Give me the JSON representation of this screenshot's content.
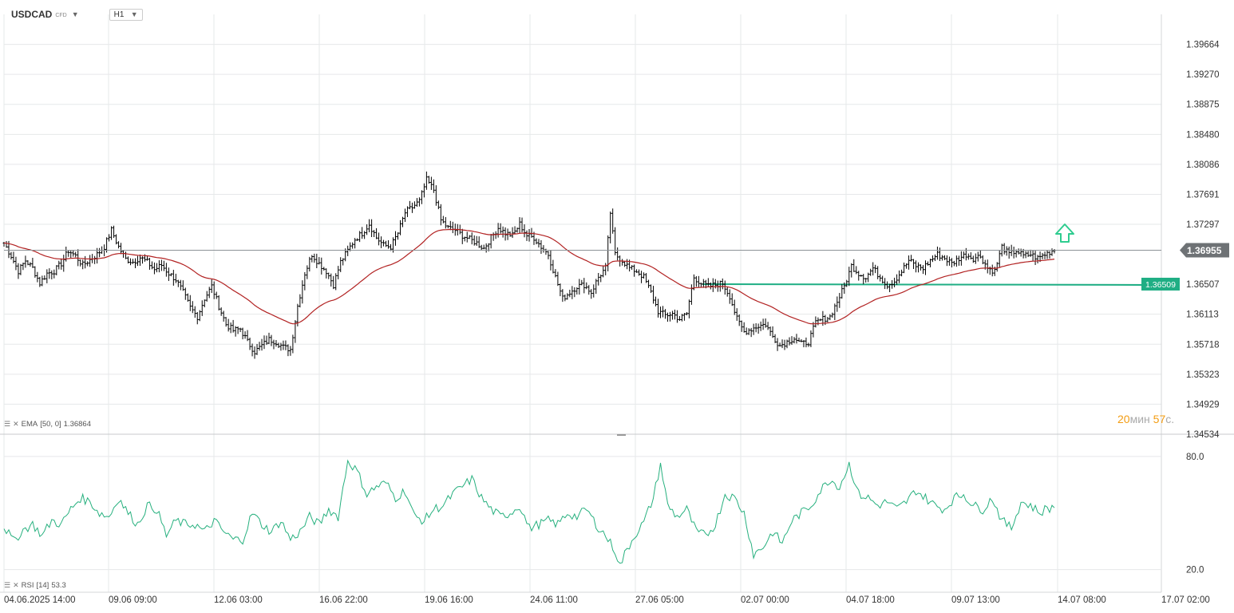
{
  "header": {
    "symbol": "USDCAD",
    "instrument_type": "CFD",
    "timeframe": "H1"
  },
  "indicators": {
    "ema_label": "EMA",
    "ema_params": "[50, 0]",
    "ema_value": "1.36864",
    "rsi_label": "RSI",
    "rsi_params": "[14]",
    "rsi_value": "53.3"
  },
  "timer": {
    "minutes": "20",
    "minutes_unit": "мин",
    "seconds": "57",
    "seconds_unit": "с."
  },
  "colors": {
    "candles": "#000000",
    "ema": "#b22222",
    "rsi": "#26b07e",
    "support_line": "#1fae84",
    "support_label_bg": "#1fae84",
    "price_tag_bg": "#6e7275",
    "arrow": "#2ecc8f",
    "grid": "#e6e8ea"
  },
  "chart_data": [
    {
      "type": "ohlc",
      "title": "USDCAD H1",
      "x_tick_labels": [
        "04.06.2025 14:00",
        "09.06 09:00",
        "12.06 03:00",
        "16.06 22:00",
        "19.06 16:00",
        "24.06 11:00",
        "27.06 05:00",
        "02.07 00:00",
        "04.07 18:00",
        "09.07 13:00",
        "14.07 08:00",
        "17.07 02:00"
      ],
      "y_tick_labels": [
        "1.39664",
        "1.39270",
        "1.38875",
        "1.38480",
        "1.38086",
        "1.37691",
        "1.37297",
        "1.36955",
        "1.36507",
        "1.36113",
        "1.35718",
        "1.35323",
        "1.34929",
        "1.34534"
      ],
      "ylim": [
        1.34534,
        1.39664
      ],
      "current_price": "1.36955",
      "support_level": "1.36509",
      "close_path": [
        [
          0,
          1.3705
        ],
        [
          3,
          1.3688
        ],
        [
          6,
          1.3668
        ],
        [
          9,
          1.3682
        ],
        [
          12,
          1.3672
        ],
        [
          15,
          1.3652
        ],
        [
          18,
          1.3665
        ],
        [
          21,
          1.3668
        ],
        [
          24,
          1.3678
        ],
        [
          27,
          1.3695
        ],
        [
          30,
          1.3688
        ],
        [
          33,
          1.3676
        ],
        [
          36,
          1.3683
        ],
        [
          39,
          1.369
        ],
        [
          42,
          1.37
        ],
        [
          45,
          1.3722
        ],
        [
          48,
          1.37
        ],
        [
          51,
          1.3684
        ],
        [
          54,
          1.368
        ],
        [
          57,
          1.3686
        ],
        [
          60,
          1.368
        ],
        [
          63,
          1.367
        ],
        [
          66,
          1.3676
        ],
        [
          69,
          1.3665
        ],
        [
          72,
          1.3657
        ],
        [
          75,
          1.364
        ],
        [
          78,
          1.362
        ],
        [
          81,
          1.3608
        ],
        [
          84,
          1.3632
        ],
        [
          87,
          1.3648
        ],
        [
          90,
          1.3622
        ],
        [
          93,
          1.3598
        ],
        [
          96,
          1.359
        ],
        [
          99,
          1.3592
        ],
        [
          102,
          1.3575
        ],
        [
          105,
          1.3562
        ],
        [
          108,
          1.357
        ],
        [
          111,
          1.3578
        ],
        [
          114,
          1.3575
        ],
        [
          117,
          1.3568
        ],
        [
          120,
          1.3565
        ],
        [
          123,
          1.3622
        ],
        [
          126,
          1.3665
        ],
        [
          129,
          1.369
        ],
        [
          132,
          1.3678
        ],
        [
          135,
          1.3668
        ],
        [
          138,
          1.365
        ],
        [
          141,
          1.368
        ],
        [
          144,
          1.3695
        ],
        [
          147,
          1.371
        ],
        [
          150,
          1.3718
        ],
        [
          153,
          1.373
        ],
        [
          156,
          1.3712
        ],
        [
          159,
          1.3702
        ],
        [
          162,
          1.37
        ],
        [
          165,
          1.3718
        ],
        [
          168,
          1.3745
        ],
        [
          171,
          1.3752
        ],
        [
          174,
          1.376
        ],
        [
          177,
          1.3788
        ],
        [
          180,
          1.3775
        ],
        [
          183,
          1.3735
        ],
        [
          186,
          1.3725
        ],
        [
          189,
          1.3722
        ],
        [
          192,
          1.3715
        ],
        [
          195,
          1.371
        ],
        [
          198,
          1.3705
        ],
        [
          201,
          1.3698
        ],
        [
          204,
          1.3712
        ],
        [
          207,
          1.3725
        ],
        [
          210,
          1.3718
        ],
        [
          213,
          1.3715
        ],
        [
          216,
          1.373
        ],
        [
          219,
          1.3715
        ],
        [
          222,
          1.3712
        ],
        [
          225,
          1.37
        ],
        [
          228,
          1.369
        ],
        [
          231,
          1.366
        ],
        [
          234,
          1.3632
        ],
        [
          237,
          1.364
        ],
        [
          240,
          1.3648
        ],
        [
          243,
          1.365
        ],
        [
          246,
          1.364
        ],
        [
          249,
          1.366
        ],
        [
          252,
          1.3672
        ],
        [
          254,
          1.3745
        ],
        [
          256,
          1.369
        ],
        [
          259,
          1.3682
        ],
        [
          262,
          1.3672
        ],
        [
          265,
          1.3668
        ],
        [
          268,
          1.366
        ],
        [
          271,
          1.364
        ],
        [
          274,
          1.3615
        ],
        [
          277,
          1.361
        ],
        [
          280,
          1.3612
        ],
        [
          283,
          1.3605
        ],
        [
          286,
          1.3612
        ],
        [
          289,
          1.366
        ],
        [
          292,
          1.3652
        ],
        [
          295,
          1.3648
        ],
        [
          298,
          1.365
        ],
        [
          301,
          1.3652
        ],
        [
          304,
          1.3635
        ],
        [
          307,
          1.3605
        ],
        [
          310,
          1.3588
        ],
        [
          313,
          1.3592
        ],
        [
          316,
          1.3596
        ],
        [
          319,
          1.3598
        ],
        [
          322,
          1.3582
        ],
        [
          325,
          1.357
        ],
        [
          328,
          1.3575
        ],
        [
          331,
          1.358
        ],
        [
          334,
          1.3572
        ],
        [
          337,
          1.3575
        ],
        [
          340,
          1.36
        ],
        [
          343,
          1.3605
        ],
        [
          346,
          1.3608
        ],
        [
          349,
          1.3628
        ],
        [
          352,
          1.3648
        ],
        [
          355,
          1.3675
        ],
        [
          358,
          1.3665
        ],
        [
          361,
          1.366
        ],
        [
          364,
          1.3672
        ],
        [
          367,
          1.366
        ],
        [
          370,
          1.365
        ],
        [
          373,
          1.3655
        ],
        [
          376,
          1.3668
        ],
        [
          379,
          1.3682
        ],
        [
          382,
          1.3675
        ],
        [
          385,
          1.3672
        ],
        [
          388,
          1.3682
        ],
        [
          391,
          1.369
        ],
        [
          394,
          1.3685
        ],
        [
          397,
          1.3678
        ],
        [
          400,
          1.3685
        ],
        [
          403,
          1.369
        ],
        [
          406,
          1.3685
        ],
        [
          409,
          1.3688
        ],
        [
          412,
          1.3672
        ],
        [
          415,
          1.3668
        ],
        [
          418,
          1.37
        ],
        [
          421,
          1.369
        ],
        [
          424,
          1.3695
        ],
        [
          427,
          1.3688
        ],
        [
          430,
          1.369
        ],
        [
          433,
          1.3685
        ],
        [
          436,
          1.369
        ],
        [
          439,
          1.3695
        ],
        [
          440,
          1.3696
        ]
      ]
    },
    {
      "type": "line",
      "title": "RSI [14]",
      "y_tick_labels": [
        "80.0",
        "20.0"
      ],
      "ylim": [
        20,
        80
      ],
      "current_value": 53.3,
      "path": [
        [
          0,
          43
        ],
        [
          4,
          35
        ],
        [
          8,
          41
        ],
        [
          12,
          44
        ],
        [
          16,
          38
        ],
        [
          20,
          46
        ],
        [
          24,
          44
        ],
        [
          28,
          52
        ],
        [
          32,
          58
        ],
        [
          36,
          56
        ],
        [
          40,
          50
        ],
        [
          44,
          48
        ],
        [
          48,
          58
        ],
        [
          52,
          50
        ],
        [
          56,
          44
        ],
        [
          60,
          54
        ],
        [
          64,
          52
        ],
        [
          68,
          38
        ],
        [
          72,
          46
        ],
        [
          76,
          44
        ],
        [
          80,
          44
        ],
        [
          84,
          40
        ],
        [
          88,
          46
        ],
        [
          92,
          40
        ],
        [
          96,
          36
        ],
        [
          100,
          36
        ],
        [
          104,
          50
        ],
        [
          108,
          44
        ],
        [
          112,
          40
        ],
        [
          116,
          46
        ],
        [
          120,
          36
        ],
        [
          124,
          40
        ],
        [
          128,
          48
        ],
        [
          132,
          44
        ],
        [
          136,
          52
        ],
        [
          140,
          48
        ],
        [
          144,
          78
        ],
        [
          148,
          72
        ],
        [
          152,
          60
        ],
        [
          156,
          64
        ],
        [
          160,
          66
        ],
        [
          164,
          58
        ],
        [
          168,
          62
        ],
        [
          172,
          48
        ],
        [
          176,
          46
        ],
        [
          180,
          52
        ],
        [
          184,
          54
        ],
        [
          188,
          60
        ],
        [
          192,
          64
        ],
        [
          196,
          68
        ],
        [
          200,
          58
        ],
        [
          204,
          52
        ],
        [
          208,
          48
        ],
        [
          212,
          50
        ],
        [
          216,
          54
        ],
        [
          220,
          42
        ],
        [
          224,
          44
        ],
        [
          228,
          46
        ],
        [
          232,
          44
        ],
        [
          236,
          50
        ],
        [
          240,
          48
        ],
        [
          244,
          52
        ],
        [
          248,
          44
        ],
        [
          252,
          38
        ],
        [
          256,
          30
        ],
        [
          258,
          22
        ],
        [
          260,
          28
        ],
        [
          264,
          38
        ],
        [
          268,
          45
        ],
        [
          272,
          58
        ],
        [
          275,
          76
        ],
        [
          278,
          54
        ],
        [
          282,
          48
        ],
        [
          286,
          52
        ],
        [
          290,
          40
        ],
        [
          294,
          38
        ],
        [
          298,
          44
        ],
        [
          302,
          60
        ],
        [
          306,
          58
        ],
        [
          310,
          50
        ],
        [
          314,
          28
        ],
        [
          318,
          32
        ],
        [
          322,
          40
        ],
        [
          326,
          34
        ],
        [
          330,
          46
        ],
        [
          334,
          50
        ],
        [
          338,
          54
        ],
        [
          342,
          62
        ],
        [
          346,
          68
        ],
        [
          350,
          64
        ],
        [
          354,
          76
        ],
        [
          358,
          60
        ],
        [
          362,
          58
        ],
        [
          366,
          54
        ],
        [
          370,
          56
        ],
        [
          374,
          52
        ],
        [
          378,
          56
        ],
        [
          382,
          62
        ],
        [
          386,
          58
        ],
        [
          390,
          54
        ],
        [
          394,
          52
        ],
        [
          398,
          58
        ],
        [
          402,
          60
        ],
        [
          406,
          54
        ],
        [
          410,
          52
        ],
        [
          414,
          58
        ],
        [
          418,
          46
        ],
        [
          422,
          42
        ],
        [
          426,
          56
        ],
        [
          430,
          54
        ],
        [
          434,
          50
        ],
        [
          436,
          52
        ],
        [
          440,
          53.3
        ]
      ]
    }
  ]
}
